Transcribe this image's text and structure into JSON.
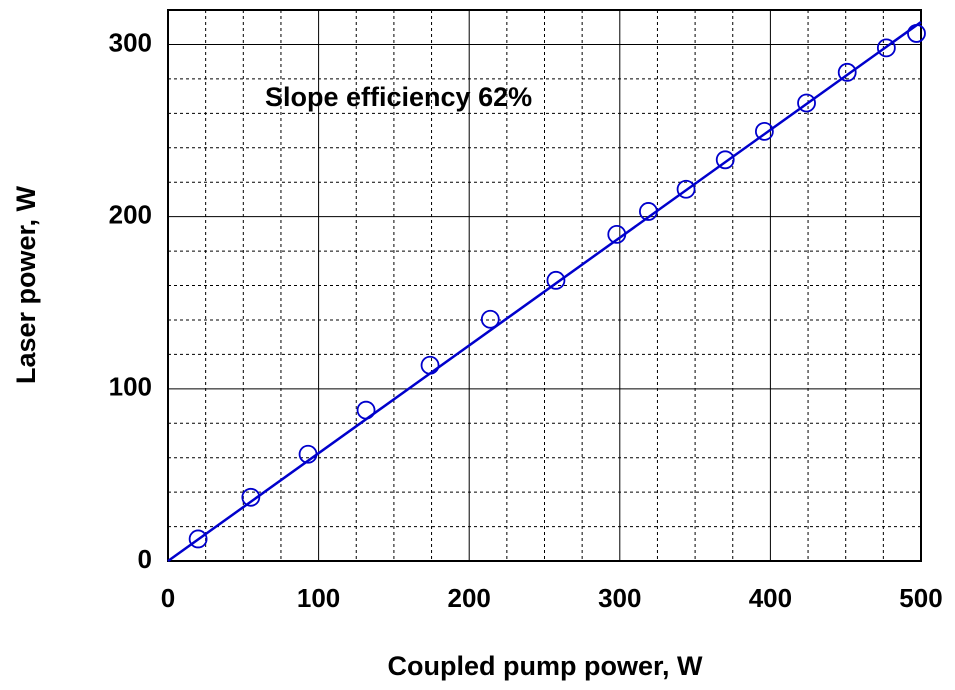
{
  "chart_data": {
    "type": "scatter",
    "annotation": "Slope efficiency 62%",
    "x_label": "Coupled pump power, W",
    "y_label": "Laser power, W",
    "color": "#0000cc",
    "x": [
      20,
      55,
      93,
      131.5,
      174,
      214,
      257.6,
      298,
      319,
      344,
      370,
      396,
      424,
      451,
      477,
      497
    ],
    "values": [
      12.8,
      37,
      62,
      87.6,
      113.7,
      140.4,
      163,
      189.7,
      203,
      215.9,
      233,
      249.5,
      266,
      283.8,
      298,
      306.4
    ],
    "fit": {
      "x": [
        0,
        500
      ],
      "values": [
        0,
        313
      ]
    },
    "xlim": [
      0,
      500
    ],
    "ylim": [
      0,
      320
    ],
    "xticks": [
      0,
      100,
      200,
      300,
      400,
      500
    ],
    "yticks": [
      0,
      100,
      200,
      300
    ],
    "x_minor_grid": [
      25,
      50,
      75,
      125,
      150,
      175,
      225,
      250,
      275,
      325,
      350,
      375,
      425,
      450,
      475
    ],
    "y_minor_grid": [
      20,
      40,
      60,
      80,
      120,
      140,
      160,
      180,
      220,
      240,
      260,
      280
    ],
    "grid": true
  }
}
